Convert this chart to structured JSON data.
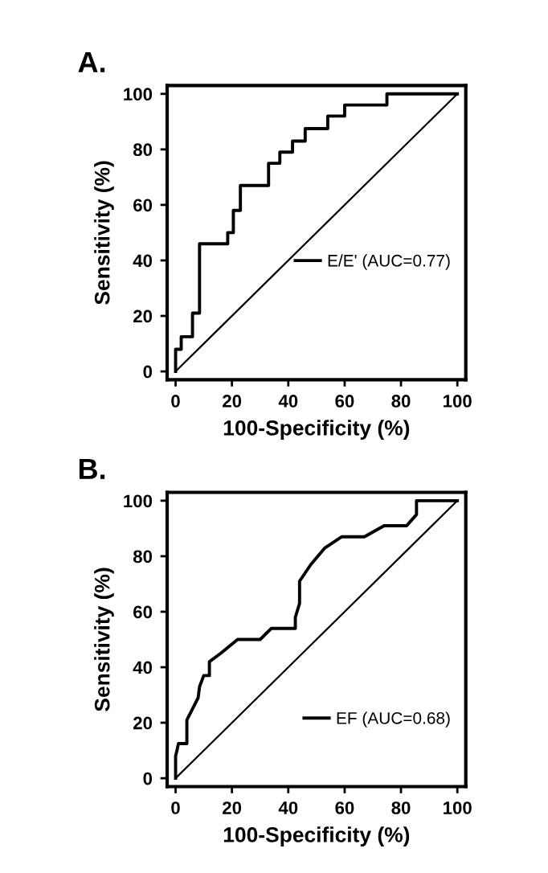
{
  "chart_data": [
    {
      "type": "line",
      "title": "A.",
      "xlabel": "100-Specificity (%)",
      "ylabel": "Sensitivity (%)",
      "xlim": [
        -3,
        103
      ],
      "ylim": [
        -3,
        103
      ],
      "xticks": [
        0,
        20,
        40,
        60,
        80,
        100
      ],
      "yticks": [
        0,
        20,
        40,
        60,
        80,
        100
      ],
      "grid": false,
      "legend": "right",
      "marker": "none",
      "line_style": "solid",
      "series": [
        {
          "name": "E/E' (AUC=0.77)",
          "color": "#000000",
          "x": [
            0,
            0,
            2,
            2,
            6,
            6,
            8.5,
            8.5,
            18.5,
            18.5,
            20.5,
            20.5,
            23,
            23,
            33,
            33,
            37,
            37,
            41.5,
            41.5,
            46,
            46,
            54,
            54,
            60,
            60,
            75,
            75,
            100
          ],
          "values": [
            0,
            8,
            8,
            12.5,
            12.5,
            21,
            21,
            46,
            46,
            50,
            50,
            58,
            58,
            67,
            67,
            75,
            75,
            79,
            79,
            83,
            83,
            87.5,
            87.5,
            92,
            92,
            96,
            96,
            100,
            100
          ]
        },
        {
          "color": "#000000",
          "x": [
            0,
            100
          ],
          "values": [
            0,
            100
          ]
        }
      ]
    },
    {
      "type": "line",
      "title": "B.",
      "xlabel": "100-Specificity (%)",
      "ylabel": "Sensitivity (%)",
      "xlim": [
        -3,
        103
      ],
      "ylim": [
        -3,
        103
      ],
      "xticks": [
        0,
        20,
        40,
        60,
        80,
        100
      ],
      "yticks": [
        0,
        20,
        40,
        60,
        80,
        100
      ],
      "grid": false,
      "legend": "bottom right",
      "marker": "none",
      "line_style": "solid",
      "series": [
        {
          "name": "EF (AUC=0.68)",
          "color": "#000000",
          "x": [
            0,
            0,
            0.5,
            1,
            2,
            4,
            4,
            6,
            8,
            8.5,
            10,
            12,
            12,
            16,
            22,
            30,
            34,
            42.5,
            42.5,
            44,
            44,
            48,
            53,
            59,
            67,
            74,
            82,
            85.5,
            85.5,
            100
          ],
          "values": [
            0,
            8,
            10,
            12.5,
            12.5,
            12.5,
            21,
            25,
            29,
            33,
            37,
            37,
            42,
            45,
            50,
            50,
            54,
            54,
            58,
            63,
            71,
            77,
            83,
            87,
            87,
            91,
            91,
            95,
            100,
            100
          ]
        },
        {
          "color": "#000000",
          "x": [
            0,
            100
          ],
          "values": [
            0,
            100
          ]
        }
      ]
    }
  ]
}
